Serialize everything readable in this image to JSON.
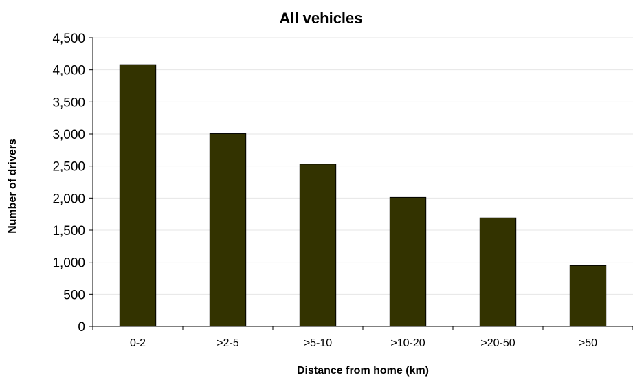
{
  "chart_data": {
    "type": "bar",
    "title": "All vehicles",
    "xlabel": "Distance from home (km)",
    "ylabel": "Number of drivers",
    "categories": [
      "0-2",
      ">2-5",
      ">5-10",
      ">10-20",
      ">20-50",
      ">50"
    ],
    "series": [
      {
        "values": [
          4080,
          3005,
          2530,
          2010,
          1690,
          950
        ]
      }
    ],
    "ylim": [
      0,
      4500
    ],
    "yticks": [
      0,
      500,
      1000,
      1500,
      2000,
      2500,
      3000,
      3500,
      4000,
      4500
    ],
    "ytick_labels": [
      "0",
      "500",
      "1,000",
      "1,500",
      "2,000",
      "2,500",
      "3,000",
      "3,500",
      "4,000",
      "4,500"
    ],
    "grid": true,
    "legend": "none",
    "bar_color": "#333300",
    "grid_color": "#e6e6e6"
  }
}
